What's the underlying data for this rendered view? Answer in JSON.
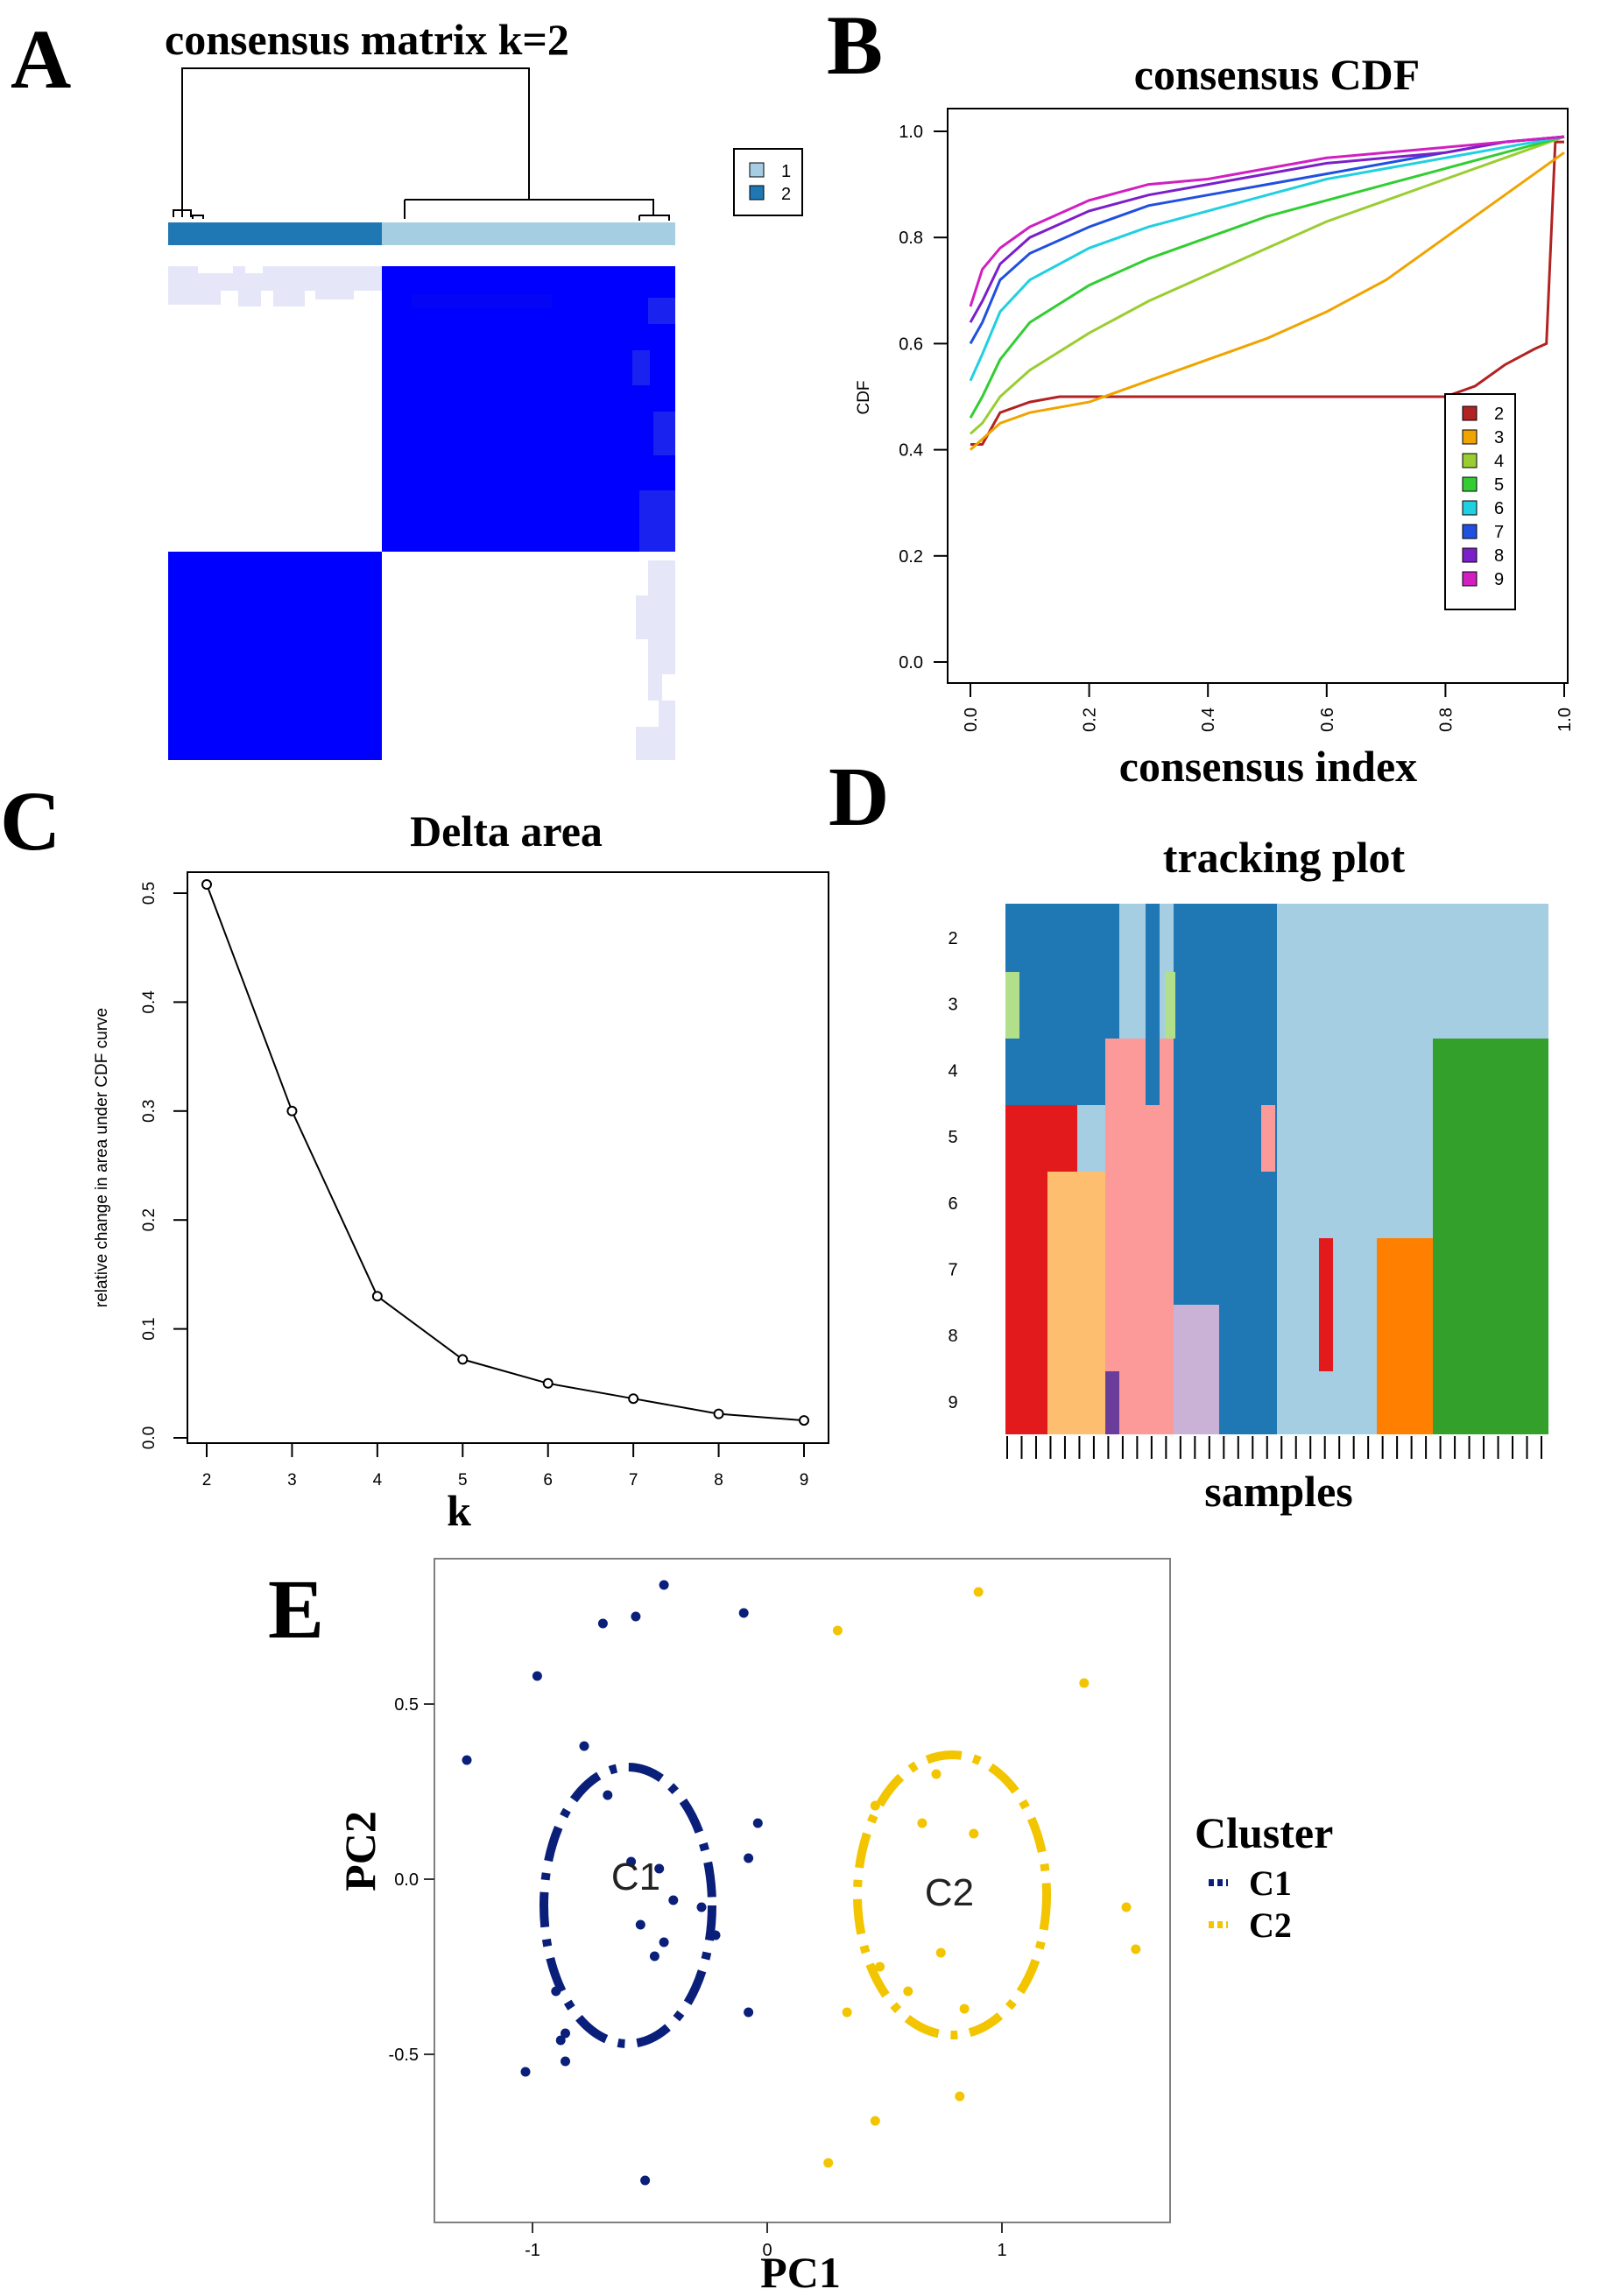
{
  "panels": {
    "A": "A",
    "B": "B",
    "C": "C",
    "D": "D",
    "E": "E"
  },
  "colors": {
    "heat_high": "#0000ff",
    "heat_low": "#e5e7f8",
    "cluster1": "#a6cee3",
    "cluster2": "#1f78b4",
    "cdf": [
      "#b22222",
      "#f0a400",
      "#9acd32",
      "#32cd32",
      "#20d0e0",
      "#2050e0",
      "#7b20c8",
      "#d020c0"
    ],
    "track": [
      "#1f78b4",
      "#a6cee3",
      "#b2df8a",
      "#fb9a99",
      "#e31a1c",
      "#fdbf6f",
      "#6a3d9a",
      "#cab2d6",
      "#33a02c",
      "#ff7f00"
    ],
    "C1": "#0a1f7a",
    "C2": "#f2c500"
  },
  "chart_data": [
    {
      "id": "A",
      "type": "heatmap",
      "title": "consensus matrix k=2",
      "legend": [
        "1",
        "2"
      ],
      "cluster_sizes": {
        "1": 30,
        "2": 22
      },
      "values": {
        "within_cluster": 1.0,
        "between_cluster": 0.0
      }
    },
    {
      "id": "B",
      "type": "line",
      "title": "consensus CDF",
      "xlabel": "consensus index",
      "ylabel": "CDF",
      "xlim": [
        0,
        1
      ],
      "ylim": [
        0,
        1
      ],
      "xticks": [
        "0.0",
        "0.2",
        "0.4",
        "0.6",
        "0.8",
        "1.0"
      ],
      "yticks": [
        "0.0",
        "0.2",
        "0.4",
        "0.6",
        "0.8",
        "1.0"
      ],
      "series": [
        {
          "name": "2",
          "x": [
            0,
            0.02,
            0.05,
            0.1,
            0.15,
            0.2,
            0.3,
            0.4,
            0.5,
            0.6,
            0.7,
            0.8,
            0.85,
            0.9,
            0.95,
            0.97,
            0.985,
            1.0
          ],
          "y": [
            0.41,
            0.41,
            0.47,
            0.49,
            0.5,
            0.5,
            0.5,
            0.5,
            0.5,
            0.5,
            0.5,
            0.5,
            0.52,
            0.56,
            0.59,
            0.6,
            0.98,
            0.98
          ]
        },
        {
          "name": "3",
          "x": [
            0,
            0.02,
            0.05,
            0.1,
            0.2,
            0.3,
            0.4,
            0.5,
            0.6,
            0.7,
            0.8,
            0.9,
            1.0
          ],
          "y": [
            0.4,
            0.42,
            0.45,
            0.47,
            0.49,
            0.53,
            0.57,
            0.61,
            0.66,
            0.72,
            0.8,
            0.88,
            0.96
          ]
        },
        {
          "name": "4",
          "x": [
            0,
            0.02,
            0.05,
            0.1,
            0.2,
            0.3,
            0.4,
            0.5,
            0.6,
            0.7,
            0.8,
            0.9,
            1.0
          ],
          "y": [
            0.43,
            0.45,
            0.5,
            0.55,
            0.62,
            0.68,
            0.73,
            0.78,
            0.83,
            0.87,
            0.91,
            0.95,
            0.99
          ]
        },
        {
          "name": "5",
          "x": [
            0,
            0.02,
            0.05,
            0.1,
            0.2,
            0.3,
            0.4,
            0.5,
            0.6,
            0.7,
            0.8,
            0.9,
            1.0
          ],
          "y": [
            0.46,
            0.5,
            0.57,
            0.64,
            0.71,
            0.76,
            0.8,
            0.84,
            0.87,
            0.9,
            0.93,
            0.96,
            0.99
          ]
        },
        {
          "name": "6",
          "x": [
            0,
            0.02,
            0.05,
            0.1,
            0.2,
            0.3,
            0.4,
            0.5,
            0.6,
            0.7,
            0.8,
            0.9,
            1.0
          ],
          "y": [
            0.53,
            0.58,
            0.66,
            0.72,
            0.78,
            0.82,
            0.85,
            0.88,
            0.91,
            0.93,
            0.95,
            0.97,
            0.99
          ]
        },
        {
          "name": "7",
          "x": [
            0,
            0.02,
            0.05,
            0.1,
            0.2,
            0.3,
            0.4,
            0.5,
            0.6,
            0.7,
            0.8,
            0.9,
            1.0
          ],
          "y": [
            0.6,
            0.64,
            0.72,
            0.77,
            0.82,
            0.86,
            0.88,
            0.9,
            0.92,
            0.94,
            0.96,
            0.98,
            0.99
          ]
        },
        {
          "name": "8",
          "x": [
            0,
            0.02,
            0.05,
            0.1,
            0.2,
            0.3,
            0.4,
            0.5,
            0.6,
            0.7,
            0.8,
            0.9,
            1.0
          ],
          "y": [
            0.64,
            0.68,
            0.75,
            0.8,
            0.85,
            0.88,
            0.9,
            0.92,
            0.94,
            0.95,
            0.96,
            0.98,
            0.99
          ]
        },
        {
          "name": "9",
          "x": [
            0,
            0.02,
            0.05,
            0.1,
            0.2,
            0.3,
            0.4,
            0.5,
            0.6,
            0.7,
            0.8,
            0.9,
            1.0
          ],
          "y": [
            0.67,
            0.74,
            0.78,
            0.82,
            0.87,
            0.9,
            0.91,
            0.93,
            0.95,
            0.96,
            0.97,
            0.98,
            0.99
          ]
        }
      ],
      "legend": [
        "2",
        "3",
        "4",
        "5",
        "6",
        "7",
        "8",
        "9"
      ]
    },
    {
      "id": "C",
      "type": "line",
      "title": "Delta area",
      "xlabel": "k",
      "ylabel": "relative change in area under CDF curve",
      "x": [
        2,
        3,
        4,
        5,
        6,
        7,
        8,
        9
      ],
      "values": [
        0.508,
        0.3,
        0.13,
        0.072,
        0.05,
        0.036,
        0.022,
        0.016
      ],
      "xlim": [
        2,
        9
      ],
      "ylim": [
        0,
        0.5
      ],
      "xticks": [
        "2",
        "3",
        "4",
        "5",
        "6",
        "7",
        "8",
        "9"
      ],
      "yticks": [
        "0.0",
        "0.1",
        "0.2",
        "0.3",
        "0.4",
        "0.5"
      ]
    },
    {
      "id": "D",
      "type": "heatmap",
      "title": "tracking plot",
      "xlabel": "samples",
      "rows": [
        "2",
        "3",
        "4",
        "5",
        "6",
        "7",
        "8",
        "9"
      ],
      "n_samples": 38
    },
    {
      "id": "E",
      "type": "scatter",
      "xlabel": "PC1",
      "ylabel": "PC2",
      "xticks": [
        "-1",
        "0",
        "1"
      ],
      "yticks": [
        "0.5",
        "0.0",
        "-0.5"
      ],
      "xlim": [
        -1.42,
        1.7
      ],
      "ylim": [
        -0.92,
        0.88
      ],
      "legend_title": "Cluster",
      "centroid_labels": [
        "C1",
        "C2"
      ],
      "series": [
        {
          "name": "C1",
          "x": [
            -1.28,
            -0.98,
            -0.78,
            -0.7,
            -0.56,
            -0.44,
            -0.1,
            -0.68,
            -0.58,
            -0.46,
            -0.4,
            -0.28,
            -0.22,
            -0.04,
            -0.08,
            -0.54,
            -0.48,
            -0.44,
            -0.9,
            -0.86,
            -0.88,
            -0.86,
            -1.03,
            -0.08,
            -0.52
          ],
          "y": [
            0.34,
            0.58,
            0.38,
            0.73,
            0.75,
            0.84,
            0.76,
            0.24,
            0.05,
            0.03,
            -0.06,
            -0.08,
            -0.16,
            0.16,
            0.06,
            -0.13,
            -0.22,
            -0.18,
            -0.32,
            -0.44,
            -0.46,
            -0.52,
            -0.55,
            -0.38,
            -0.86
          ]
        },
        {
          "name": "C2",
          "x": [
            0.3,
            0.9,
            1.35,
            0.72,
            0.46,
            0.66,
            0.88,
            1.53,
            1.57,
            0.74,
            0.48,
            0.6,
            0.34,
            0.84,
            0.46,
            0.82,
            0.26
          ],
          "y": [
            0.71,
            0.82,
            0.56,
            0.3,
            0.21,
            0.16,
            0.13,
            -0.08,
            -0.2,
            -0.21,
            -0.25,
            -0.32,
            -0.38,
            -0.37,
            -0.69,
            -0.62,
            -0.81
          ]
        }
      ]
    }
  ]
}
